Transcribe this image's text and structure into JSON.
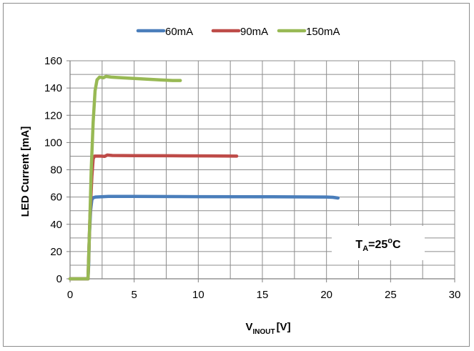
{
  "chart_data": {
    "type": "line",
    "title": "",
    "xlabel_main": "V",
    "xlabel_sub": "INOUT",
    "xlabel_unit": "[V]",
    "ylabel": "LED Current [mA]",
    "xlim": [
      0,
      30
    ],
    "ylim": [
      0,
      160
    ],
    "x_ticks": [
      "0",
      "5",
      "10",
      "15",
      "20",
      "25",
      "30"
    ],
    "y_ticks": [
      "0",
      "20",
      "40",
      "60",
      "80",
      "100",
      "120",
      "140",
      "160"
    ],
    "x_grid_step": 2.5,
    "y_grid_step": 10,
    "grid": true,
    "legend_position": "top",
    "annotation": {
      "main": "T",
      "sub": "A",
      "rest": "=25",
      "sup": "o",
      "unit": "C"
    },
    "series": [
      {
        "name": "60mA",
        "color": "#4a7ebb",
        "points": [
          [
            0,
            0
          ],
          [
            1.4,
            0
          ],
          [
            1.45,
            10
          ],
          [
            1.5,
            30
          ],
          [
            1.6,
            50
          ],
          [
            1.7,
            58
          ],
          [
            1.8,
            59.5
          ],
          [
            2,
            60
          ],
          [
            3,
            60.5
          ],
          [
            5,
            60.5
          ],
          [
            10,
            60.3
          ],
          [
            15,
            60.2
          ],
          [
            20,
            60
          ],
          [
            20.5,
            59.8
          ],
          [
            20.9,
            59.3
          ]
        ]
      },
      {
        "name": "90mA",
        "color": "#be4b48",
        "points": [
          [
            0,
            0
          ],
          [
            1.4,
            0
          ],
          [
            1.45,
            15
          ],
          [
            1.55,
            45
          ],
          [
            1.7,
            75
          ],
          [
            1.8,
            88
          ],
          [
            1.9,
            90
          ],
          [
            2.4,
            90
          ],
          [
            2.7,
            89.8
          ],
          [
            2.9,
            90.8
          ],
          [
            3.3,
            90.5
          ],
          [
            5,
            90.4
          ],
          [
            8,
            90.3
          ],
          [
            11,
            90.2
          ],
          [
            13,
            90
          ]
        ]
      },
      {
        "name": "150mA",
        "color": "#98b954",
        "points": [
          [
            0,
            0
          ],
          [
            1.4,
            0
          ],
          [
            1.45,
            15
          ],
          [
            1.55,
            45
          ],
          [
            1.65,
            80
          ],
          [
            1.8,
            115
          ],
          [
            1.95,
            138
          ],
          [
            2.1,
            146
          ],
          [
            2.3,
            148
          ],
          [
            2.6,
            147.5
          ],
          [
            2.8,
            148.5
          ],
          [
            3.2,
            148
          ],
          [
            4,
            147.5
          ],
          [
            5,
            147
          ],
          [
            6,
            146.5
          ],
          [
            7,
            146
          ],
          [
            8,
            145.5
          ],
          [
            8.6,
            145.5
          ]
        ]
      }
    ]
  }
}
